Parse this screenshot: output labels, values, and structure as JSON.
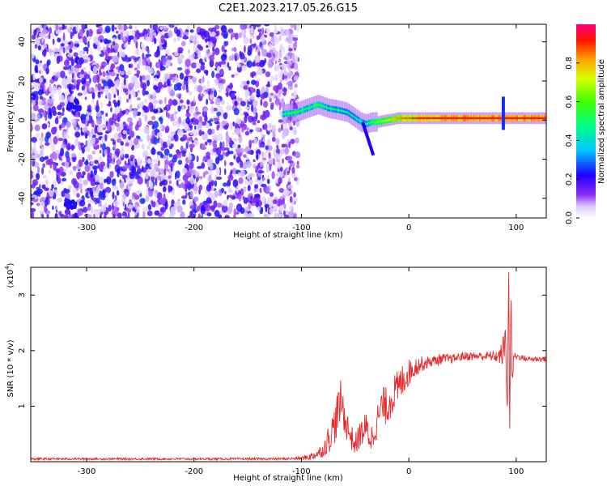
{
  "title": "C2E1.2023.217.05.26.G15",
  "chart_data": [
    {
      "type": "heatmap",
      "xlabel": "Height of straight line (km)",
      "ylabel": "Frequency (Hz)",
      "xlim": [
        -352,
        128
      ],
      "ylim": [
        -50,
        49
      ],
      "x_ticks": [
        -300,
        -200,
        -100,
        0,
        100
      ],
      "y_ticks": [
        -40,
        -20,
        0,
        20,
        40
      ],
      "colorbar": {
        "label": "Normalized spectral amplitude",
        "range": [
          0,
          1
        ],
        "ticks": [
          "0.0",
          "0.2",
          "0.4",
          "0.6",
          "0.8"
        ]
      },
      "noise_region": {
        "x_range": [
          -352,
          -103
        ],
        "y_range": [
          -50,
          49
        ]
      },
      "noise_clusters": [
        {
          "x": -315,
          "y": -43
        },
        {
          "x": -313,
          "y": 8
        }
      ],
      "signal_track": {
        "x": [
          -118,
          -105,
          -95,
          -85,
          -75,
          -65,
          -58,
          -50,
          -45,
          -40,
          -35,
          -30,
          -20,
          -10,
          0,
          10,
          30,
          60,
          85,
          88,
          100,
          128
        ],
        "y": [
          3,
          4,
          6,
          8,
          6,
          5,
          4,
          1,
          -1,
          -2,
          -1,
          -1,
          0,
          1,
          1,
          1,
          1,
          1,
          1,
          1,
          1,
          1
        ],
        "amplitude": [
          0.5,
          0.55,
          0.5,
          0.55,
          0.5,
          0.5,
          0.45,
          0.45,
          0.45,
          0.5,
          0.55,
          0.6,
          0.7,
          0.8,
          0.85,
          0.9,
          0.95,
          0.95,
          0.95,
          0.95,
          0.95,
          0.95
        ]
      },
      "spike": {
        "x": 88,
        "y_range": [
          -5,
          12
        ]
      },
      "tail": {
        "x": [
          -43,
          -33
        ],
        "y": [
          -1,
          -18
        ]
      }
    },
    {
      "type": "line",
      "xlabel": "Height of straight line (km)",
      "ylabel": "SNR (10 * v/v)",
      "y_scale_label": "(x10",
      "y_scale_exponent": "4",
      "xlim": [
        -352,
        128
      ],
      "ylim": [
        0,
        3.5
      ],
      "x_ticks": [
        -300,
        -200,
        -100,
        0,
        100
      ],
      "y_ticks": [
        1,
        2,
        3
      ],
      "series": [
        {
          "color": "#e8282a",
          "x": [
            -352,
            -300,
            -200,
            -120,
            -100,
            -90,
            -80,
            -75,
            -70,
            -66,
            -63,
            -60,
            -55,
            -50,
            -45,
            -40,
            -35,
            -30,
            -25,
            -20,
            -15,
            -10,
            -5,
            0,
            5,
            10,
            20,
            30,
            40,
            50,
            60,
            70,
            80,
            85,
            88,
            90,
            92,
            93,
            94,
            95,
            96,
            98,
            100,
            110,
            120,
            128
          ],
          "y": [
            0.05,
            0.05,
            0.05,
            0.05,
            0.06,
            0.1,
            0.2,
            0.4,
            0.6,
            0.9,
            1.1,
            0.8,
            0.5,
            0.3,
            0.5,
            0.6,
            0.4,
            0.7,
            1.0,
            1.0,
            1.2,
            1.3,
            1.5,
            1.6,
            1.7,
            1.75,
            1.8,
            1.85,
            1.85,
            1.9,
            1.9,
            1.9,
            1.9,
            1.9,
            2.0,
            2.1,
            1.3,
            3.3,
            0.9,
            3.0,
            1.5,
            1.9,
            1.9,
            1.85,
            1.85,
            1.85
          ],
          "noise": [
            0.02,
            0.02,
            0.02,
            0.02,
            0.03,
            0.08,
            0.12,
            0.25,
            0.35,
            0.4,
            0.4,
            0.3,
            0.25,
            0.2,
            0.25,
            0.3,
            0.25,
            0.3,
            0.35,
            0.35,
            0.35,
            0.35,
            0.3,
            0.25,
            0.2,
            0.15,
            0.1,
            0.1,
            0.08,
            0.08,
            0.08,
            0.08,
            0.1,
            0.15,
            0.3,
            0.4,
            0.6,
            0.3,
            0.6,
            0.4,
            0.3,
            0.08,
            0.06,
            0.05,
            0.05,
            0.05
          ]
        }
      ]
    }
  ]
}
